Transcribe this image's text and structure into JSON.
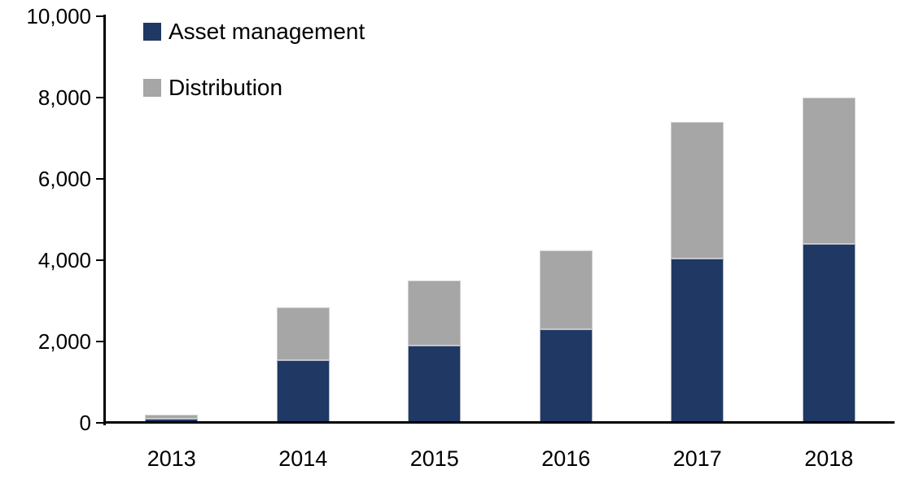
{
  "chart_data": {
    "type": "bar",
    "stacked": true,
    "title": "",
    "xlabel": "",
    "ylabel": "",
    "categories": [
      "2013",
      "2014",
      "2015",
      "2016",
      "2017",
      "2018"
    ],
    "series": [
      {
        "name": "Asset management",
        "color": "#1F3864",
        "values": [
          100,
          1550,
          1900,
          2300,
          4050,
          4400
        ]
      },
      {
        "name": "Distribution",
        "color": "#A6A6A6",
        "values": [
          100,
          1300,
          1600,
          1950,
          3350,
          3600
        ]
      }
    ],
    "ylim": [
      0,
      10000
    ],
    "ytick_interval": 2000,
    "ytick_labels": [
      "0",
      "2,000",
      "4,000",
      "6,000",
      "8,000",
      "10,000"
    ],
    "grid": false,
    "legend_position": "top-left",
    "axis_color": "#000000"
  }
}
